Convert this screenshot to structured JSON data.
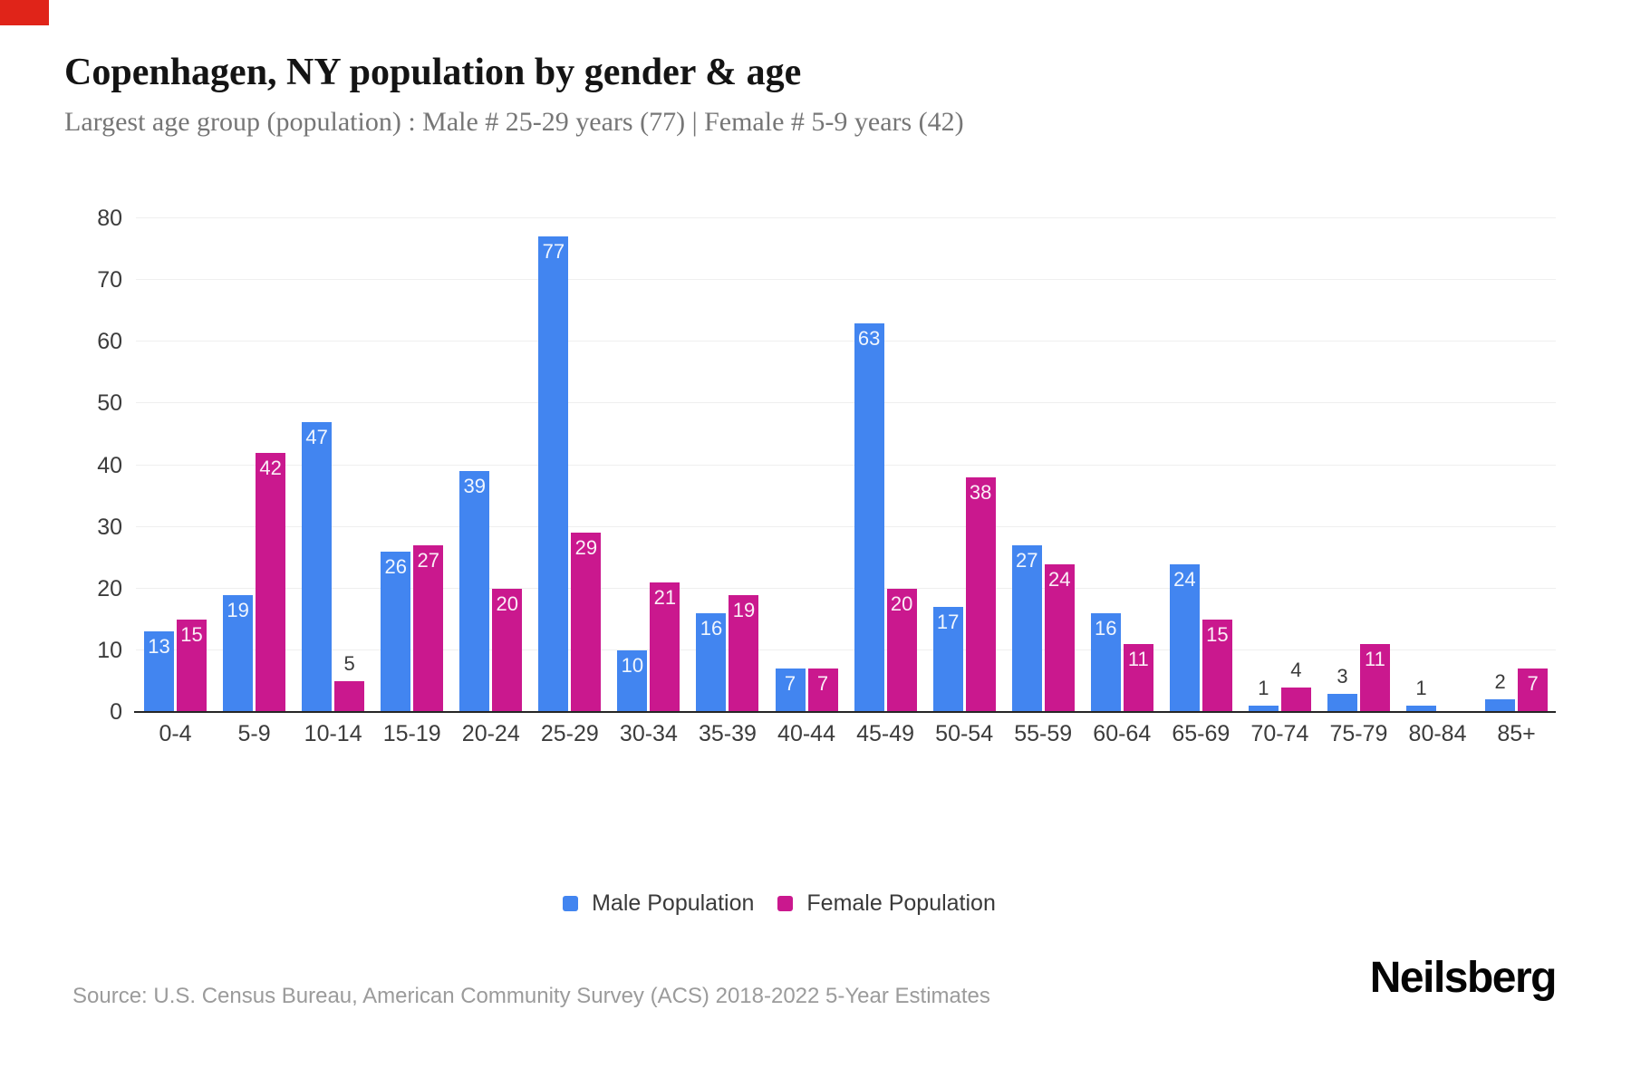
{
  "page": {
    "background": "#ffffff",
    "corner_marker_color": "#e02419"
  },
  "header": {
    "title": "Copenhagen, NY population by gender & age",
    "subtitle": "Largest age group (population) : Male # 25-29 years (77) | Female # 5-9 years (42)"
  },
  "chart_data": {
    "type": "bar",
    "title": "Copenhagen, NY population by gender & age",
    "xlabel": "",
    "ylabel": "",
    "ylim": [
      0,
      80
    ],
    "yticks": [
      0,
      10,
      20,
      30,
      40,
      50,
      60,
      70,
      80
    ],
    "grid": true,
    "legend_position": "bottom",
    "inside_label_min": 7,
    "categories": [
      "0-4",
      "5-9",
      "10-14",
      "15-19",
      "20-24",
      "25-29",
      "30-34",
      "35-39",
      "40-44",
      "45-49",
      "50-54",
      "55-59",
      "60-64",
      "65-69",
      "70-74",
      "75-79",
      "80-84",
      "85+"
    ],
    "series": [
      {
        "name": "Male Population",
        "color": "#4285f0",
        "values": [
          13,
          19,
          47,
          26,
          39,
          77,
          10,
          16,
          7,
          63,
          17,
          27,
          16,
          24,
          1,
          3,
          1,
          2
        ]
      },
      {
        "name": "Female Population",
        "color": "#ca188e",
        "values": [
          15,
          42,
          5,
          27,
          20,
          29,
          21,
          19,
          7,
          20,
          38,
          24,
          11,
          15,
          4,
          11,
          0,
          7
        ]
      }
    ]
  },
  "footer": {
    "source": "Source: U.S. Census Bureau, American Community Survey (ACS) 2018-2022 5-Year Estimates",
    "brand": "Neilsberg"
  }
}
